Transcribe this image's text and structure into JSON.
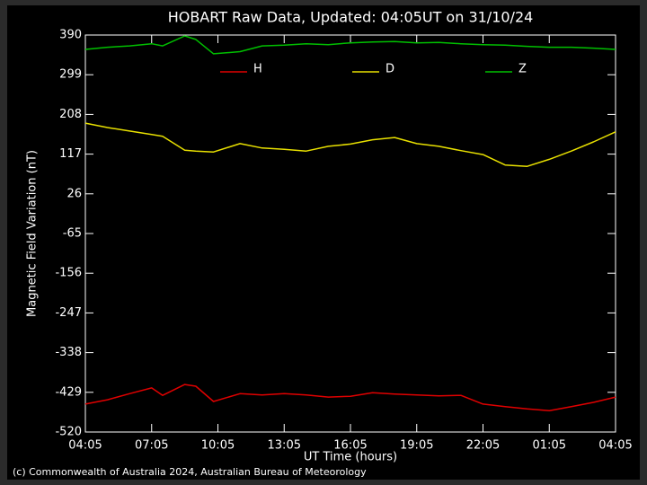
{
  "chart_data": {
    "type": "line",
    "title": "HOBART Raw Data, Updated: 04:05UT on 31/10/24",
    "x_label": "UT Time (hours)",
    "y_label": "Magnetic Field Variation (nT)",
    "footer": "(c) Commonwealth of Australia 2024, Australian Bureau of Meteorology",
    "x": [
      0,
      1,
      2,
      3,
      3.5,
      4.5,
      5,
      5.8,
      7,
      8,
      9,
      10,
      11,
      12,
      13,
      14,
      15,
      16,
      17,
      18,
      19,
      20,
      21,
      22,
      23,
      24
    ],
    "xlim": [
      0,
      24
    ],
    "xticks": [
      {
        "value": 0,
        "label": "04:05"
      },
      {
        "value": 3,
        "label": "07:05"
      },
      {
        "value": 6,
        "label": "10:05"
      },
      {
        "value": 9,
        "label": "13:05"
      },
      {
        "value": 12,
        "label": "16:05"
      },
      {
        "value": 15,
        "label": "19:05"
      },
      {
        "value": 18,
        "label": "22:05"
      },
      {
        "value": 21,
        "label": "01:05"
      },
      {
        "value": 24,
        "label": "04:05"
      }
    ],
    "ylim": [
      -520,
      390
    ],
    "yticks": [
      390,
      299,
      208,
      117,
      26,
      -65,
      -156,
      -247,
      -338,
      -429,
      -520
    ],
    "legend": "top",
    "series": [
      {
        "name": "H",
        "color": "#e00000",
        "values": [
          -456,
          -446,
          -432,
          -419,
          -436,
          -411,
          -415,
          -450,
          -432,
          -435,
          -432,
          -435,
          -440,
          -438,
          -430,
          -433,
          -435,
          -437,
          -436,
          -456,
          -462,
          -467,
          -471,
          -462,
          -452,
          -440
        ]
      },
      {
        "name": "D",
        "color": "#e8e000",
        "values": [
          188,
          178,
          170,
          162,
          158,
          126,
          124,
          122,
          141,
          131,
          128,
          124,
          135,
          140,
          150,
          155,
          141,
          135,
          125,
          116,
          92,
          89,
          105,
          124,
          145,
          168
        ]
      },
      {
        "name": "Z",
        "color": "#00c000",
        "values": [
          357,
          362,
          365,
          370,
          365,
          388,
          380,
          347,
          352,
          365,
          367,
          370,
          368,
          372,
          374,
          375,
          372,
          373,
          370,
          368,
          367,
          364,
          362,
          362,
          360,
          357
        ]
      }
    ]
  }
}
